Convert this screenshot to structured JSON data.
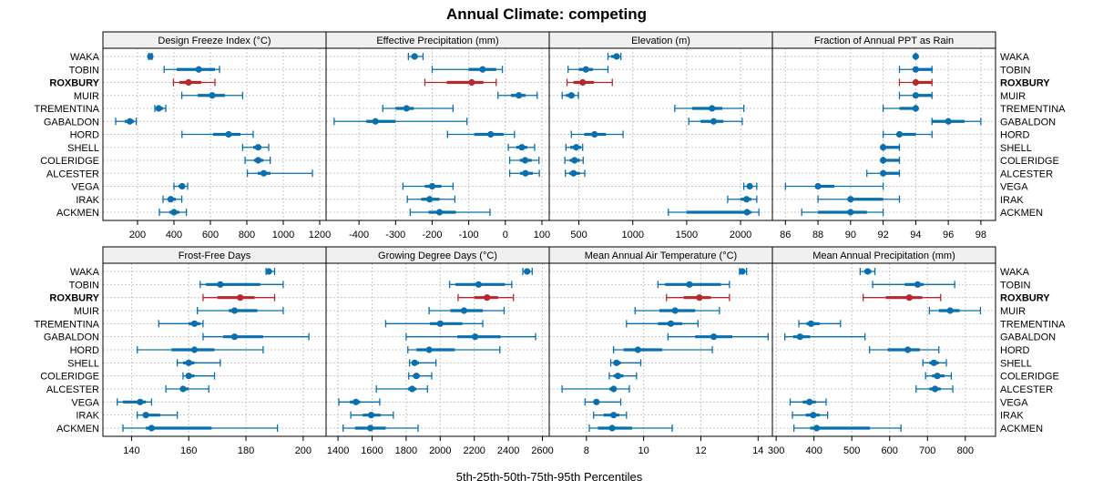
{
  "chart_data": {
    "type": "dotplot-percentile",
    "title": "Annual Climate: competing",
    "xlabel": "5th-25th-50th-75th-95th Percentiles",
    "highlight_station": "ROXBURY",
    "colors": {
      "default": "#0a6fae",
      "highlight": "#b5282b"
    },
    "stations": [
      "WAKA",
      "TOBIN",
      "ROXBURY",
      "MUIR",
      "TREMENTINA",
      "GABALDON",
      "HORD",
      "SHELL",
      "COLERIDGE",
      "ALCESTER",
      "VEGA",
      "IRAK",
      "ACKMEN"
    ],
    "percentile_order": [
      "p5",
      "p25",
      "p50",
      "p75",
      "p95"
    ],
    "grid": true,
    "panels": [
      {
        "title": "Design Freeze Index (°C)",
        "xlim": [
          10,
          1235
        ],
        "ticks": [
          200,
          400,
          600,
          800,
          1000,
          1200
        ],
        "tick_labels": [
          "200",
          "400",
          "600",
          "800",
          "1000",
          "1200"
        ],
        "values": [
          [
            262,
            266,
            270,
            275,
            280
          ],
          [
            346,
            415,
            536,
            625,
            650
          ],
          [
            397,
            430,
            480,
            550,
            625
          ],
          [
            443,
            530,
            610,
            680,
            777
          ],
          [
            295,
            305,
            316,
            340,
            355
          ],
          [
            80,
            130,
            158,
            180,
            193
          ],
          [
            444,
            615,
            700,
            765,
            835
          ],
          [
            777,
            835,
            862,
            880,
            920
          ],
          [
            790,
            840,
            862,
            890,
            928
          ],
          [
            803,
            860,
            893,
            930,
            1160
          ],
          [
            400,
            425,
            445,
            460,
            475
          ],
          [
            340,
            365,
            382,
            410,
            443
          ],
          [
            320,
            375,
            400,
            430,
            468
          ]
        ]
      },
      {
        "title": "Effective Precipitation (mm)",
        "xlim": [
          -490,
          120
        ],
        "ticks": [
          -400,
          -300,
          -200,
          -100,
          0,
          100
        ],
        "tick_labels": [
          "-400",
          "-300",
          "-200",
          "-100",
          "0",
          "100"
        ],
        "values": [
          [
            -265,
            -257,
            -248,
            -240,
            -225
          ],
          [
            -200,
            -100,
            -62,
            -25,
            -8
          ],
          [
            -220,
            -160,
            -92,
            -60,
            -25
          ],
          [
            -20,
            15,
            37,
            55,
            87
          ],
          [
            -335,
            -300,
            -270,
            -250,
            -143
          ],
          [
            -468,
            -380,
            -355,
            -300,
            -105
          ],
          [
            -158,
            -85,
            -40,
            -5,
            25
          ],
          [
            8,
            30,
            45,
            60,
            80
          ],
          [
            12,
            40,
            54,
            72,
            92
          ],
          [
            12,
            40,
            55,
            75,
            93
          ],
          [
            -280,
            -220,
            -200,
            -175,
            -143
          ],
          [
            -268,
            -230,
            -207,
            -180,
            -138
          ],
          [
            -260,
            -210,
            -180,
            -135,
            -42
          ]
        ]
      },
      {
        "title": "Elevation (m)",
        "xlim": [
          225,
          2295
        ],
        "ticks": [
          500,
          1000,
          1500,
          2000
        ],
        "tick_labels": [
          "500",
          "1000",
          "1500",
          "2000"
        ],
        "values": [
          [
            770,
            800,
            850,
            875,
            890
          ],
          [
            400,
            500,
            565,
            630,
            770
          ],
          [
            390,
            450,
            535,
            640,
            810
          ],
          [
            345,
            380,
            430,
            460,
            495
          ],
          [
            1390,
            1550,
            1735,
            1830,
            2030
          ],
          [
            1520,
            1630,
            1750,
            1840,
            2015
          ],
          [
            430,
            550,
            645,
            750,
            910
          ],
          [
            380,
            420,
            475,
            520,
            535
          ],
          [
            370,
            415,
            460,
            510,
            540
          ],
          [
            375,
            410,
            450,
            510,
            555
          ],
          [
            2030,
            2060,
            2085,
            2110,
            2150
          ],
          [
            1880,
            2000,
            2055,
            2100,
            2150
          ],
          [
            1330,
            1500,
            2060,
            2100,
            2170
          ]
        ]
      },
      {
        "title": "Fraction of Annual PPT as Rain",
        "xlim": [
          85.2,
          98.9
        ],
        "ticks": [
          86,
          88,
          90,
          92,
          94,
          96,
          98
        ],
        "tick_labels": [
          "86",
          "88",
          "90",
          "92",
          "94",
          "96",
          "98"
        ],
        "values": [
          [
            94,
            94,
            94,
            94,
            94
          ],
          [
            93,
            94,
            94,
            95,
            95
          ],
          [
            93,
            94,
            94,
            95,
            95
          ],
          [
            93,
            94,
            94,
            95,
            95
          ],
          [
            92,
            93,
            94,
            94,
            94
          ],
          [
            95,
            95,
            96,
            97,
            98
          ],
          [
            92,
            93,
            93,
            94,
            95
          ],
          [
            92,
            92,
            92,
            93,
            93
          ],
          [
            92,
            92,
            92,
            93,
            93
          ],
          [
            91,
            92,
            92,
            93,
            93
          ],
          [
            86,
            88,
            88,
            89,
            92
          ],
          [
            88,
            90,
            90,
            92,
            93
          ],
          [
            87,
            88,
            90,
            91,
            92
          ]
        ]
      },
      {
        "title": "Frost-Free Days",
        "xlim": [
          130,
          208
        ],
        "ticks": [
          140,
          160,
          180,
          200
        ],
        "tick_labels": [
          "140",
          "160",
          "180",
          "200"
        ],
        "values": [
          [
            187,
            187,
            188,
            189,
            190
          ],
          [
            164,
            166,
            171,
            185,
            193
          ],
          [
            165,
            170,
            178,
            183,
            190
          ],
          [
            163,
            174,
            176,
            184,
            193
          ],
          [
            149.5,
            160,
            162,
            164,
            165
          ],
          [
            165,
            172,
            176,
            186,
            202
          ],
          [
            142,
            154,
            162,
            169,
            186
          ],
          [
            156,
            158,
            160,
            162,
            171
          ],
          [
            158,
            159,
            160,
            162,
            169
          ],
          [
            152,
            157,
            158,
            160,
            167
          ],
          [
            135,
            137,
            143,
            145,
            147
          ],
          [
            142,
            144,
            145,
            150,
            156
          ],
          [
            137,
            145,
            147,
            168,
            191
          ]
        ]
      },
      {
        "title": "Growing Degree Days (°C)",
        "xlim": [
          1330,
          2640
        ],
        "ticks": [
          1400,
          1600,
          1800,
          2000,
          2200,
          2400,
          2600
        ],
        "tick_labels": [
          "1400",
          "1600",
          "1800",
          "2000",
          "2200",
          "2400",
          "2600"
        ],
        "values": [
          [
            2485,
            2495,
            2510,
            2525,
            2540
          ],
          [
            2055,
            2090,
            2225,
            2380,
            2420
          ],
          [
            2105,
            2200,
            2275,
            2340,
            2430
          ],
          [
            1935,
            2060,
            2140,
            2250,
            2375
          ],
          [
            1680,
            1940,
            2000,
            2130,
            2250
          ],
          [
            1800,
            2100,
            2205,
            2355,
            2560
          ],
          [
            1810,
            1860,
            1935,
            2085,
            2350
          ],
          [
            1820,
            1835,
            1850,
            1875,
            1975
          ],
          [
            1815,
            1840,
            1860,
            1880,
            1950
          ],
          [
            1625,
            1810,
            1835,
            1860,
            1925
          ],
          [
            1405,
            1470,
            1505,
            1530,
            1645
          ],
          [
            1475,
            1545,
            1595,
            1650,
            1725
          ],
          [
            1430,
            1500,
            1590,
            1680,
            1870
          ]
        ]
      },
      {
        "title": "Mean Annual Air Temperature (°C)",
        "xlim": [
          6.7,
          14.5
        ],
        "ticks": [
          8,
          10,
          12,
          14
        ],
        "tick_labels": [
          "8",
          "10",
          "12",
          "14"
        ],
        "values": [
          [
            13.35,
            13.4,
            13.45,
            13.5,
            13.6
          ],
          [
            10.5,
            10.75,
            11.6,
            12.7,
            13.0
          ],
          [
            10.8,
            11.4,
            11.95,
            12.35,
            13.0
          ],
          [
            9.7,
            10.55,
            11.1,
            11.8,
            12.65
          ],
          [
            9.4,
            10.5,
            10.95,
            11.35,
            11.9
          ],
          [
            10.85,
            11.8,
            12.45,
            13.1,
            14.35
          ],
          [
            8.95,
            9.3,
            9.8,
            10.65,
            12.4
          ],
          [
            8.85,
            8.95,
            9.05,
            9.2,
            9.9
          ],
          [
            8.8,
            8.95,
            9.1,
            9.3,
            9.75
          ],
          [
            7.15,
            8.8,
            8.95,
            9.05,
            9.5
          ],
          [
            7.95,
            8.25,
            8.35,
            8.45,
            9.2
          ],
          [
            8.25,
            8.6,
            8.95,
            9.15,
            9.4
          ],
          [
            8.1,
            8.4,
            8.9,
            9.6,
            11.0
          ]
        ]
      },
      {
        "title": "Mean Annual Precipitation (mm)",
        "xlim": [
          290,
          880
        ],
        "ticks": [
          300,
          400,
          500,
          600,
          700,
          800
        ],
        "tick_labels": [
          "300",
          "400",
          "500",
          "600",
          "700",
          "800"
        ],
        "values": [
          [
            522,
            533,
            542,
            552,
            561
          ],
          [
            555,
            640,
            674,
            690,
            772
          ],
          [
            530,
            590,
            652,
            686,
            735
          ],
          [
            705,
            730,
            760,
            785,
            840
          ],
          [
            360,
            380,
            392,
            415,
            470
          ],
          [
            323,
            345,
            363,
            390,
            535
          ],
          [
            547,
            595,
            648,
            680,
            730
          ],
          [
            688,
            705,
            717,
            730,
            750
          ],
          [
            695,
            712,
            726,
            745,
            763
          ],
          [
            670,
            705,
            720,
            735,
            767
          ],
          [
            337,
            370,
            388,
            405,
            432
          ],
          [
            343,
            378,
            398,
            415,
            436
          ],
          [
            347,
            390,
            407,
            548,
            630
          ]
        ]
      }
    ]
  }
}
